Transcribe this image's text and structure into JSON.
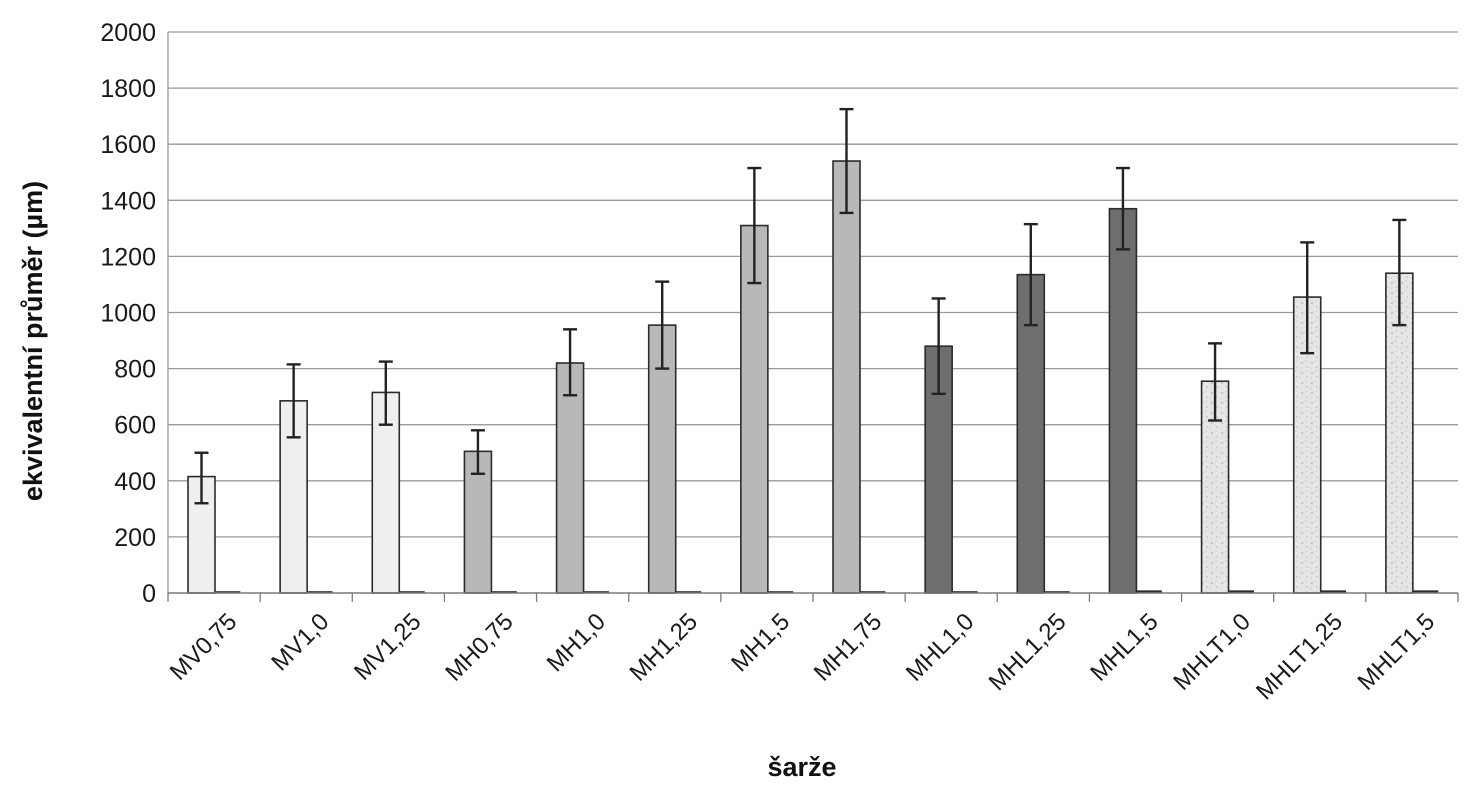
{
  "chart_data": {
    "type": "bar",
    "title": "",
    "xlabel": "šarže",
    "ylabel": "ekvivalentní průměr (µm)",
    "ylim": [
      0,
      2000
    ],
    "yticks": [
      0,
      200,
      400,
      600,
      800,
      1000,
      1200,
      1400,
      1600,
      1800,
      2000
    ],
    "grid": true,
    "legend": "none",
    "categories": [
      "MV0,75",
      "MV1,0",
      "MV1,25",
      "MH0,75",
      "MH1,0",
      "MH1,25",
      "MH1,5",
      "MH1,75",
      "MHL1,0",
      "MHL1,25",
      "MHL1,5",
      "MHLT1,0",
      "MHLT1,25",
      "MHLT1,5"
    ],
    "values": [
      415,
      685,
      715,
      505,
      820,
      955,
      1310,
      1540,
      880,
      1135,
      1370,
      755,
      1055,
      1140
    ],
    "error_low": [
      320,
      555,
      600,
      425,
      705,
      800,
      1105,
      1355,
      710,
      955,
      1225,
      615,
      855,
      955
    ],
    "error_high": [
      500,
      815,
      825,
      580,
      940,
      1110,
      1515,
      1725,
      1050,
      1315,
      1515,
      890,
      1250,
      1330
    ],
    "secondary_values": [
      5,
      5,
      5,
      5,
      5,
      5,
      5,
      5,
      5,
      5,
      8,
      8,
      8,
      8
    ],
    "fill_groups": [
      "white",
      "white",
      "white",
      "lightgray",
      "lightgray",
      "lightgray",
      "lightgray",
      "lightgray",
      "darkgray",
      "darkgray",
      "darkgray",
      "speckled",
      "speckled",
      "speckled"
    ],
    "colors": {
      "white": "#efefef",
      "lightgray": "#b8b8b8",
      "darkgray": "#6e6e6e",
      "speckled": "#e6e6e6",
      "speckle_dot": "#c9c9c9",
      "grid": "#9a9a9a",
      "bar_stroke": "#2b2b2b",
      "error_bar": "#222222"
    }
  }
}
